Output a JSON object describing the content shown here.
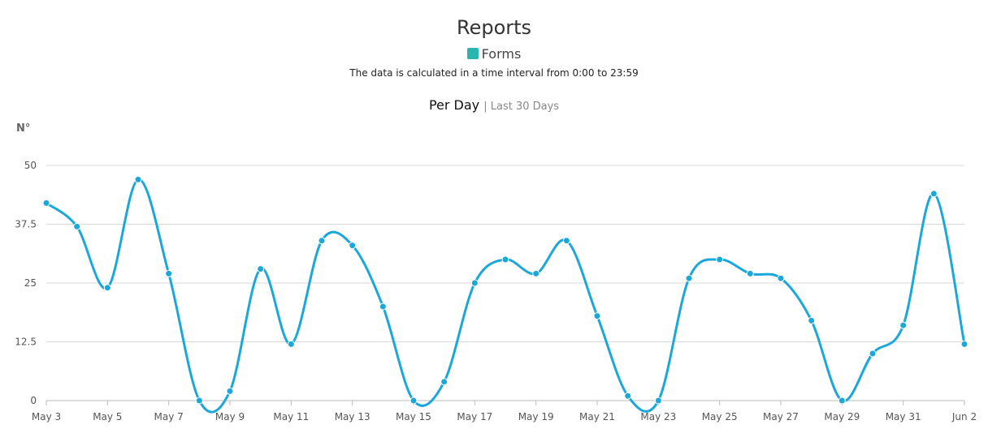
{
  "header": {
    "title": "Reports",
    "legend_label": "Forms",
    "subtitle": "The data is calculated in a time interval from 0:00 to 23:59",
    "period_main": "Per Day",
    "period_sep": "| Last 30 Days"
  },
  "colors": {
    "series": "#1ba8d8",
    "legend": "#2ab5b0",
    "grid": "#d9d9d9"
  },
  "chart_data": {
    "type": "line",
    "title": "Per Day",
    "xlabel": "",
    "ylabel": "N°",
    "ylim": [
      0,
      50
    ],
    "yticks": [
      "0",
      "12.5",
      "25",
      "37.5",
      "50"
    ],
    "x": [
      "May 3",
      "May 4",
      "May 5",
      "May 6",
      "May 7",
      "May 8",
      "May 9",
      "May 10",
      "May 11",
      "May 12",
      "May 13",
      "May 14",
      "May 15",
      "May 16",
      "May 17",
      "May 18",
      "May 19",
      "May 20",
      "May 21",
      "May 22",
      "May 23",
      "May 24",
      "May 25",
      "May 26",
      "May 27",
      "May 28",
      "May 29",
      "May 30",
      "May 31",
      "Jun 1",
      "Jun 2"
    ],
    "xtick_labels": [
      "May 3",
      "May 5",
      "May 7",
      "May 9",
      "May 11",
      "May 13",
      "May 15",
      "May 17",
      "May 19",
      "May 21",
      "May 23",
      "May 25",
      "May 27",
      "May 29",
      "May 31",
      "Jun 2"
    ],
    "grid": true,
    "series": [
      {
        "name": "Forms",
        "values": [
          42,
          37,
          24,
          47,
          27,
          0,
          2,
          28,
          12,
          34,
          33,
          20,
          0,
          4,
          25,
          30,
          27,
          34,
          18,
          1,
          0,
          26,
          30,
          27,
          26,
          17,
          0,
          10,
          16,
          44,
          12
        ]
      }
    ]
  }
}
